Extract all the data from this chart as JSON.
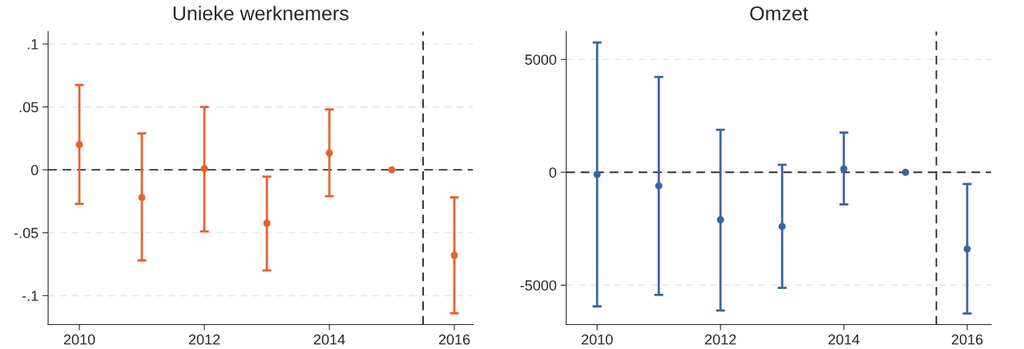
{
  "chart_data": [
    {
      "type": "scatter",
      "title": "Unieke werknemers",
      "x": [
        2010,
        2011,
        2012,
        2013,
        2014,
        2015,
        2016
      ],
      "series": [
        {
          "color": "#e8602c",
          "values": [
            0.02,
            -0.022,
            0.001,
            -0.0425,
            0.0134,
            0,
            -0.068
          ],
          "errors": [
            [
              -0.027,
              0.0675
            ],
            [
              -0.072,
              0.029
            ],
            [
              -0.049,
              0.05
            ],
            [
              -0.08,
              -0.0054
            ],
            [
              -0.021,
              0.048
            ],
            null,
            [
              -0.114,
              -0.022
            ]
          ]
        }
      ],
      "xlim": [
        2009.5,
        2016.3
      ],
      "xticks": [
        2010,
        2012,
        2014,
        2016
      ],
      "ylim": [
        -0.123,
        0.11
      ],
      "yticks": [
        {
          "value": -0.1,
          "label": "-.1"
        },
        {
          "value": -0.05,
          "label": "-.05"
        },
        0,
        {
          "value": 0.05,
          "label": ".05"
        },
        {
          "value": 0.1,
          "label": ".1"
        }
      ],
      "ref_lines": [
        {
          "axis": "y",
          "value": 0,
          "line_style": "dashed",
          "color": "#333333"
        },
        {
          "axis": "x",
          "value": 2015.5,
          "line_style": "dashed",
          "color": "#222222"
        }
      ],
      "grid": "y",
      "marker": "circle"
    },
    {
      "type": "scatter",
      "title": "Omzet",
      "x": [
        2010,
        2011,
        2012,
        2013,
        2014,
        2015,
        2016
      ],
      "series": [
        {
          "color": "#3a64a0",
          "values": [
            -100,
            -600,
            -2100,
            -2400,
            150,
            0,
            -3400
          ],
          "errors": [
            [
              -5940,
              5750
            ],
            [
              -5430,
              4225
            ],
            [
              -6120,
              1880
            ],
            [
              -5120,
              330
            ],
            [
              -1420,
              1760
            ],
            null,
            [
              -6255,
              -520
            ]
          ]
        }
      ],
      "xlim": [
        2009.5,
        2016.39
      ],
      "xticks": [
        2010,
        2012,
        2014,
        2016
      ],
      "ylim": [
        -6746,
        6240
      ],
      "yticks": [
        -5000,
        0,
        5000
      ],
      "ref_lines": [
        {
          "axis": "y",
          "value": 0,
          "line_style": "dashed",
          "color": "#333333"
        },
        {
          "axis": "x",
          "value": 2015.5,
          "line_style": "dashed",
          "color": "#222222"
        }
      ],
      "grid": "y",
      "marker": "circle"
    }
  ]
}
